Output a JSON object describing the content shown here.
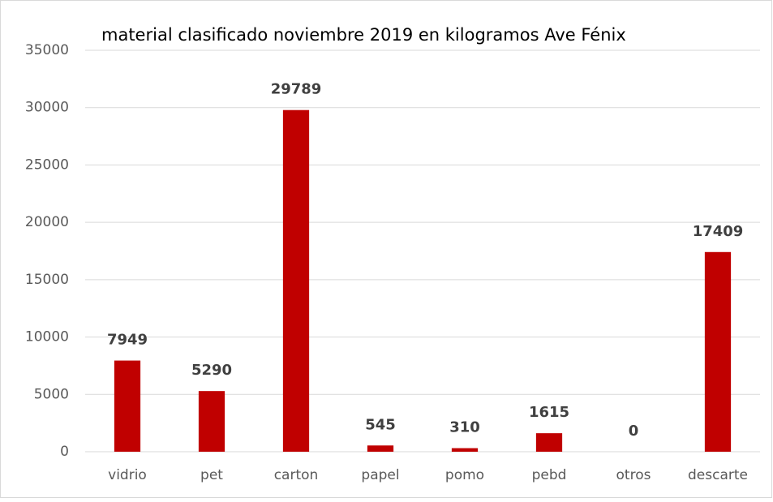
{
  "chart_data": {
    "type": "bar",
    "title": "material clasificado noviembre 2019 en kilogramos Ave Fénix",
    "categories": [
      "vidrio",
      "pet",
      "carton",
      "papel",
      "pomo",
      "pebd",
      "otros",
      "descarte"
    ],
    "values": [
      7949,
      5290,
      29789,
      545,
      310,
      1615,
      0,
      17409
    ],
    "color": "#c00000",
    "ylim": [
      0,
      35000
    ],
    "yticks": [
      0,
      5000,
      10000,
      15000,
      20000,
      25000,
      30000,
      35000
    ],
    "grid": true
  }
}
